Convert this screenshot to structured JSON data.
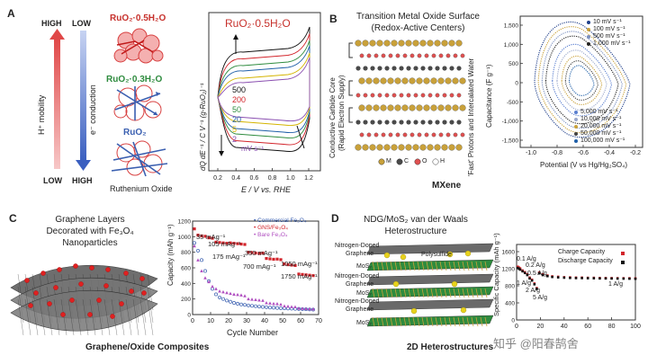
{
  "panelA": {
    "label": "A",
    "high": "HIGH",
    "low": "LOW",
    "hplus": "H⁺ mobility",
    "econd": "e⁻ conduction",
    "struct1": "RuO₂·0.5H₂O",
    "struct2": "RuO₂·0.3H₂O",
    "struct3": "RuO₂",
    "caption": "Ruthenium Oxide",
    "colors": {
      "red": "#e0514f",
      "green": "#2e8b3e",
      "blue": "#3a5fb0",
      "darkred": "#c7312c"
    }
  },
  "panelB": {
    "label": "B",
    "title1": "Transition Metal Oxide Surface",
    "title2": "(Redox-Active Centers)",
    "left1": "Conductive Carbide Core",
    "left2": "(Rapid Electron Supply)",
    "right": "'Fast' Protons and Intercalated Water",
    "legend_atoms": [
      "M",
      "C",
      "O",
      "H"
    ],
    "caption": "MXene"
  },
  "panelC": {
    "label": "C",
    "title1": "Graphene Layers",
    "title2": "Decorated with Fe₃O₄",
    "title3": "Nanoparticles",
    "caption": "Graphene/Oxide Composites",
    "rate_labels": [
      "35 mAg⁻¹",
      "105 mAg⁻¹",
      "175 mAg⁻¹",
      "350 mAg⁻¹",
      "700 mAg⁻¹",
      "1050 mAg⁻¹",
      "1750 mAg⁻¹"
    ]
  },
  "panelD": {
    "label": "D",
    "title1": "NDG/MoS₂ van der Waals",
    "title2": "Heterostructure",
    "ndg": [
      "Nitrogen-Doped",
      "Graphene"
    ],
    "mos2": "MoS₂",
    "polysulfide": "Polysulfide",
    "caption": "2D Heterostructures",
    "rate_labels": [
      "0.1 A/g",
      "0.2 A/g",
      "0.5 A/g",
      "1 A/g",
      "2 A/g",
      "5 A/g",
      "1 A/g"
    ]
  },
  "watermark": "知乎 @阳春鹄舍",
  "chart_data": [
    {
      "id": "A",
      "type": "line",
      "title": "RuO₂·0.5H₂O",
      "xlabel": "E / V vs. RHE",
      "ylabel": "dQ dE⁻¹ / C V⁻¹ (g-RuO₂)⁻¹",
      "xlim": [
        0.15,
        1.25
      ],
      "x_ticks": [
        "0.2",
        "0.4",
        "0.6",
        "0.8",
        "1.0",
        "1.2"
      ],
      "legend_title": "mV s⁻¹",
      "series": [
        {
          "name": "500",
          "color": "#111111"
        },
        {
          "name": "200",
          "color": "#d2232a"
        },
        {
          "name": "50",
          "color": "#2e8b3e"
        },
        {
          "name": "20",
          "color": "#1f5fa8"
        },
        {
          "name": "5",
          "color": "#d4b400"
        },
        {
          "name": "2",
          "color": "#8a4fb0"
        }
      ]
    },
    {
      "id": "B",
      "type": "line",
      "xlabel": "Potential (V vs Hg/Hg₂SO₄)",
      "ylabel": "Capacitance (F g⁻¹)",
      "xlim": [
        -1.15,
        -0.15
      ],
      "ylim": [
        -1800,
        1800
      ],
      "x_ticks": [
        "-1.0",
        "-0.8",
        "-0.6",
        "-0.4",
        "-0.2"
      ],
      "y_ticks": [
        "1,500",
        "1,000",
        "500",
        "0",
        "-500",
        "-1,000",
        "-1,500"
      ],
      "legend_top": [
        "10 mV s⁻¹",
        "100 mV s⁻¹",
        "500 mV s⁻¹",
        "1,000 mV s⁻¹"
      ],
      "legend_bottom": [
        "5,000 mV s⁻¹",
        "10,000 mV s⁻¹",
        "20,000 mV s⁻¹",
        "50,000 mV s⁻¹",
        "100,000 mV s⁻¹"
      ]
    },
    {
      "id": "C",
      "type": "scatter",
      "xlabel": "Cycle Number",
      "ylabel": "Capacity (mAh g⁻¹)",
      "xlim": [
        0,
        70
      ],
      "ylim": [
        0,
        1200
      ],
      "x_ticks": [
        "0",
        "10",
        "20",
        "30",
        "40",
        "50",
        "60",
        "70"
      ],
      "y_ticks": [
        "0",
        "200",
        "400",
        "600",
        "800",
        "1000",
        "1200"
      ],
      "series": [
        {
          "name": "Commercial Fe₃O₄",
          "color": "#3a5fb0",
          "points": [
            [
              1,
              920
            ],
            [
              3,
              820
            ],
            [
              5,
              700
            ],
            [
              7,
              560
            ],
            [
              9,
              430
            ],
            [
              11,
              330
            ],
            [
              13,
              260
            ],
            [
              15,
              220
            ],
            [
              17,
              200
            ],
            [
              19,
              180
            ],
            [
              21,
              165
            ],
            [
              23,
              150
            ],
            [
              25,
              140
            ],
            [
              27,
              130
            ],
            [
              29,
              125
            ],
            [
              31,
              118
            ],
            [
              33,
              112
            ],
            [
              35,
              108
            ],
            [
              37,
              102
            ],
            [
              39,
              98
            ],
            [
              41,
              95
            ],
            [
              43,
              90
            ],
            [
              45,
              88
            ],
            [
              47,
              85
            ],
            [
              49,
              82
            ],
            [
              51,
              80
            ],
            [
              53,
              78
            ],
            [
              55,
              76
            ],
            [
              57,
              74
            ],
            [
              59,
              72
            ],
            [
              61,
              70
            ],
            [
              63,
              68
            ],
            [
              65,
              66
            ],
            [
              67,
              64
            ]
          ]
        },
        {
          "name": "GNS/Fe₃O₄",
          "color": "#d2232a",
          "points": [
            [
              1,
              1100
            ],
            [
              3,
              1020
            ],
            [
              5,
              1010
            ],
            [
              7,
              1005
            ],
            [
              9,
              985
            ],
            [
              11,
              980
            ],
            [
              13,
              930
            ],
            [
              15,
              925
            ],
            [
              17,
              920
            ],
            [
              19,
              915
            ],
            [
              21,
              920
            ],
            [
              23,
              915
            ],
            [
              25,
              910
            ],
            [
              27,
              905
            ],
            [
              29,
              900
            ],
            [
              31,
              800
            ],
            [
              33,
              795
            ],
            [
              35,
              790
            ],
            [
              37,
              785
            ],
            [
              39,
              790
            ],
            [
              41,
              720
            ],
            [
              43,
              715
            ],
            [
              45,
              710
            ],
            [
              47,
              712
            ],
            [
              49,
              705
            ],
            [
              51,
              650
            ],
            [
              53,
              640
            ],
            [
              55,
              635
            ],
            [
              57,
              630
            ],
            [
              59,
              520
            ],
            [
              61,
              515
            ],
            [
              63,
              510
            ],
            [
              65,
              505
            ],
            [
              67,
              500
            ]
          ]
        },
        {
          "name": "Bare Fe₃O₄",
          "color": "#b04fc0",
          "points": [
            [
              1,
              880
            ],
            [
              3,
              700
            ],
            [
              5,
              560
            ],
            [
              7,
              470
            ],
            [
              9,
              420
            ],
            [
              11,
              360
            ],
            [
              13,
              330
            ],
            [
              15,
              300
            ],
            [
              17,
              290
            ],
            [
              19,
              280
            ],
            [
              21,
              270
            ],
            [
              23,
              260
            ],
            [
              25,
              255
            ],
            [
              27,
              250
            ],
            [
              29,
              240
            ],
            [
              31,
              200
            ],
            [
              33,
              195
            ],
            [
              35,
              190
            ],
            [
              37,
              185
            ],
            [
              39,
              180
            ],
            [
              41,
              150
            ],
            [
              43,
              145
            ],
            [
              45,
              140
            ],
            [
              47,
              138
            ],
            [
              49,
              130
            ],
            [
              51,
              110
            ],
            [
              53,
              105
            ],
            [
              55,
              100
            ],
            [
              57,
              98
            ],
            [
              59,
              80
            ],
            [
              61,
              78
            ],
            [
              63,
              75
            ],
            [
              65,
              72
            ],
            [
              67,
              70
            ]
          ]
        }
      ]
    },
    {
      "id": "D",
      "type": "scatter",
      "xlabel": "Cycles",
      "ylabel": "Specific Capacity (mAh g⁻¹)",
      "xlim": [
        0,
        100
      ],
      "ylim": [
        0,
        1800
      ],
      "x_ticks": [
        "0",
        "20",
        "40",
        "60",
        "80",
        "100"
      ],
      "y_ticks": [
        "0",
        "400",
        "800",
        "1200",
        "1600"
      ],
      "series": [
        {
          "name": "Charge Capacity",
          "color": "#d2232a",
          "points": [
            [
              1,
              1270
            ],
            [
              2,
              1250
            ],
            [
              3,
              1230
            ],
            [
              5,
              1180
            ],
            [
              7,
              1140
            ],
            [
              9,
              1090
            ],
            [
              11,
              1010
            ],
            [
              13,
              960
            ],
            [
              15,
              870
            ],
            [
              17,
              760
            ],
            [
              19,
              1130
            ],
            [
              22,
              1090
            ],
            [
              26,
              1060
            ],
            [
              30,
              1040
            ],
            [
              35,
              1030
            ],
            [
              40,
              1020
            ],
            [
              45,
              1015
            ],
            [
              50,
              1010
            ],
            [
              55,
              1010
            ],
            [
              60,
              1005
            ],
            [
              65,
              1005
            ],
            [
              70,
              1000
            ],
            [
              75,
              1000
            ],
            [
              80,
              998
            ],
            [
              85,
              996
            ],
            [
              90,
              995
            ],
            [
              95,
              994
            ],
            [
              100,
              992
            ]
          ]
        },
        {
          "name": "Discharge Capacity",
          "color": "#111111",
          "points": [
            [
              1,
              1240
            ],
            [
              2,
              1220
            ],
            [
              3,
              1200
            ],
            [
              5,
              1160
            ],
            [
              7,
              1120
            ],
            [
              9,
              1070
            ],
            [
              11,
              990
            ],
            [
              13,
              940
            ],
            [
              15,
              850
            ],
            [
              17,
              740
            ],
            [
              19,
              1110
            ],
            [
              22,
              1070
            ],
            [
              26,
              1045
            ],
            [
              30,
              1025
            ],
            [
              35,
              1015
            ],
            [
              40,
              1008
            ],
            [
              45,
              1002
            ],
            [
              50,
              998
            ],
            [
              55,
              998
            ],
            [
              60,
              995
            ],
            [
              65,
              994
            ],
            [
              70,
              990
            ],
            [
              75,
              990
            ],
            [
              80,
              988
            ],
            [
              85,
              986
            ],
            [
              90,
              985
            ],
            [
              95,
              984
            ],
            [
              100,
              982
            ]
          ]
        }
      ]
    }
  ]
}
